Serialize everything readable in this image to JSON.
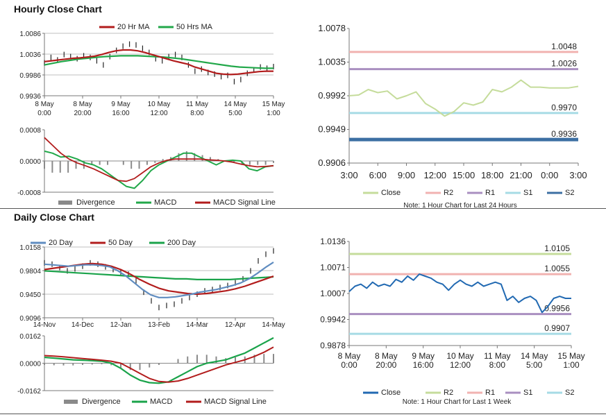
{
  "hourly_title": "Hourly Close Chart",
  "daily_title": "Daily Close Chart",
  "colors": {
    "ma20_red": "#b21c1c",
    "ma50_green": "#22a84a",
    "close_green": "#c5dc9b",
    "r2_pink": "#f1b2b0",
    "r1_purple": "#a98fc0",
    "s1_cyan": "#a6dbe5",
    "s2_blue": "#3c6fa3",
    "close_blue": "#2169b2",
    "ma20_blue": "#5f8cc0",
    "ma200_green": "#1aa34a",
    "divergence_gray": "#8a8a8a"
  },
  "chart_data": [
    {
      "id": "hourly_price",
      "type": "line",
      "legend": [
        "20 Hr MA",
        "50 Hrs MA"
      ],
      "x_ticks": [
        [
          "8 May",
          "0:00"
        ],
        [
          "8 May",
          "20:00"
        ],
        [
          "9 May",
          "16:00"
        ],
        [
          "10 May",
          "12:00"
        ],
        [
          "11 May",
          "8:00"
        ],
        [
          "14 May",
          "5:00"
        ],
        [
          "15 May",
          "1:00"
        ]
      ],
      "y_ticks": [
        "1.0086",
        "1.0036",
        "0.9986",
        "0.9936"
      ],
      "ylim": [
        0.9936,
        1.0086
      ],
      "series": [
        {
          "name": "Close",
          "values": [
            1.0015,
            1.0028,
            1.0022,
            1.0035,
            1.003,
            1.0025,
            1.0032,
            1.0028,
            1.002,
            1.001,
            1.003,
            1.0045,
            1.0055,
            1.006,
            1.0058,
            1.005,
            1.004,
            1.0025,
            1.002,
            1.003,
            1.0035,
            1.0028,
            1.001,
            0.9995,
            1.0,
            0.9992,
            0.9988,
            0.9982,
            0.9985,
            0.997,
            0.9975,
            0.999,
            0.9998,
            1.0005,
            1.0002,
            1.0006
          ]
        },
        {
          "name": "20 Hr MA",
          "values": [
            1.0018,
            1.002,
            1.0022,
            1.0024,
            1.0026,
            1.0027,
            1.0029,
            1.0031,
            1.0035,
            1.004,
            1.0044,
            1.0046,
            1.0046,
            1.0044,
            1.004,
            1.0035,
            1.003,
            1.0025,
            1.002,
            1.0016,
            1.0012,
            1.0005,
            1.0,
            0.9995,
            0.999,
            0.9988,
            0.9987,
            0.9988,
            0.999,
            0.9992,
            0.9994,
            0.9995,
            0.9995
          ]
        },
        {
          "name": "50 Hrs MA",
          "values": [
            1.001,
            1.0014,
            1.0018,
            1.0021,
            1.0024,
            1.0026,
            1.0028,
            1.003,
            1.0031,
            1.0032,
            1.0032,
            1.0032,
            1.0031,
            1.003,
            1.0029,
            1.0027,
            1.0025,
            1.0022,
            1.0019,
            1.0016,
            1.0013,
            1.001,
            1.0007,
            1.0005,
            1.0004,
            1.0003,
            1.0002,
            1.0002
          ]
        }
      ]
    },
    {
      "id": "hourly_macd",
      "type": "line",
      "legend": [
        "Divergence",
        "MACD",
        "MACD Signal Line"
      ],
      "y_ticks": [
        "0.0008",
        "0.0000",
        "-0.0008"
      ],
      "ylim": [
        -0.0008,
        0.0008
      ],
      "series": [
        {
          "name": "MACD",
          "values": [
            0.00025,
            0.0002,
            0.0001,
            0.00012,
            5e-05,
            -5e-05,
            -0.0001,
            -0.0002,
            -0.00035,
            -0.0005,
            -0.00065,
            -0.0007,
            -0.0005,
            -0.00025,
            -0.0001,
            0.0,
            0.0001,
            0.0002,
            0.0002,
            0.0001,
            0.0,
            -0.0001,
            0.0,
            2e-05,
            0.0,
            -0.0002,
            -0.00025,
            -0.00015,
            -0.00012
          ]
        },
        {
          "name": "MACD Signal Line",
          "values": [
            0.0006,
            0.0004,
            0.0002,
            5e-05,
            -5e-05,
            -0.00012,
            -0.0002,
            -0.0003,
            -0.0004,
            -0.0005,
            -0.00052,
            -0.00045,
            -0.0003,
            -0.00015,
            -5e-05,
            2e-05,
            5e-05,
            5e-05,
            5e-05,
            5e-05,
            3e-05,
            2e-05,
            0.0,
            -3e-05,
            -8e-05,
            -0.00012,
            -0.00015,
            -0.00014,
            -0.00012
          ]
        },
        {
          "name": "Divergence",
          "values": [
            -0.0002,
            -0.0003,
            -0.0003,
            -0.0003,
            -0.0002,
            -0.0002,
            -0.0001,
            -0.0001,
            -0.0001,
            0.0,
            -0.0001,
            -0.0002,
            -0.0002,
            -0.0001,
            -5e-05,
            5e-05,
            0.0001,
            0.0002,
            0.00025,
            0.0002,
            0.00015,
            0.0001,
            5e-05,
            0.0,
            -5e-05,
            -0.0001,
            -0.0001,
            -0.0001,
            -0.0001,
            -5e-05
          ]
        }
      ]
    },
    {
      "id": "hourly_levels",
      "type": "line",
      "title_note": "Note: 1 Hour Chart for Last 24 Hours",
      "legend": [
        "Close",
        "R2",
        "R1",
        "S1",
        "S2"
      ],
      "x_ticks": [
        "3:00",
        "6:00",
        "9:00",
        "12:00",
        "15:00",
        "18:00",
        "21:00",
        "0:00",
        "3:00"
      ],
      "y_ticks": [
        "1.0078",
        "1.0035",
        "0.9992",
        "0.9949",
        "0.9906"
      ],
      "ylim": [
        0.9906,
        1.0078
      ],
      "levels": [
        {
          "name": "R2",
          "value": 1.0048,
          "label": "1.0048"
        },
        {
          "name": "R1",
          "value": 1.0026,
          "label": "1.0026"
        },
        {
          "name": "S1",
          "value": 0.997,
          "label": "0.9970"
        },
        {
          "name": "S2",
          "value": 0.9936,
          "label": "0.9936"
        }
      ],
      "series": [
        {
          "name": "Close",
          "values": [
            0.9992,
            0.9993,
            1.0,
            0.9996,
            0.9998,
            0.9988,
            0.9992,
            0.9997,
            0.9982,
            0.9975,
            0.9966,
            0.9972,
            0.9983,
            0.998,
            0.9984,
            1.0,
            0.9997,
            1.0003,
            1.0012,
            1.0003,
            1.0003,
            1.0002,
            1.0002,
            1.0002,
            1.0004
          ]
        }
      ]
    },
    {
      "id": "daily_price",
      "type": "line",
      "legend": [
        "20 Day",
        "50 Day",
        "200 Day"
      ],
      "x_ticks": [
        "14-Nov",
        "14-Dec",
        "12-Jan",
        "13-Feb",
        "14-Mar",
        "12-Apr",
        "14-May"
      ],
      "y_ticks": [
        "1.0158",
        "0.9804",
        "0.9450",
        "0.9096"
      ],
      "ylim": [
        0.9096,
        1.0158
      ],
      "series": [
        {
          "name": "Close",
          "values": [
            0.992,
            0.99,
            0.985,
            0.98,
            0.983,
            0.987,
            0.992,
            0.99,
            0.986,
            0.982,
            0.978,
            0.975,
            0.965,
            0.948,
            0.935,
            0.925,
            0.928,
            0.93,
            0.935,
            0.94,
            0.945,
            0.95,
            0.952,
            0.955,
            0.958,
            0.962,
            0.968,
            0.98,
            0.995,
            1.005,
            1.01
          ]
        },
        {
          "name": "20 Day",
          "values": [
            0.99,
            0.989,
            0.988,
            0.987,
            0.988,
            0.989,
            0.989,
            0.988,
            0.986,
            0.98,
            0.972,
            0.962,
            0.952,
            0.944,
            0.94,
            0.94,
            0.941,
            0.943,
            0.945,
            0.948,
            0.95,
            0.952,
            0.955,
            0.958,
            0.962,
            0.968,
            0.976,
            0.985,
            0.993
          ]
        },
        {
          "name": "50 Day",
          "values": [
            0.982,
            0.984,
            0.986,
            0.988,
            0.99,
            0.991,
            0.99,
            0.987,
            0.982,
            0.975,
            0.967,
            0.96,
            0.954,
            0.95,
            0.948,
            0.946,
            0.945,
            0.946,
            0.948,
            0.95,
            0.953,
            0.957,
            0.962,
            0.967,
            0.972
          ]
        },
        {
          "name": "200 Day",
          "values": [
            0.98,
            0.979,
            0.978,
            0.977,
            0.976,
            0.975,
            0.974,
            0.973,
            0.972,
            0.971,
            0.97,
            0.969,
            0.968,
            0.968,
            0.967,
            0.967,
            0.967,
            0.967,
            0.968,
            0.969,
            0.97,
            0.971
          ]
        }
      ]
    },
    {
      "id": "daily_macd",
      "type": "line",
      "legend": [
        "Divergence",
        "MACD",
        "MACD Signal Line"
      ],
      "y_ticks": [
        "0.0162",
        "0.0000",
        "-0.0162"
      ],
      "ylim": [
        -0.0162,
        0.0162
      ],
      "series": [
        {
          "name": "MACD",
          "values": [
            0.0035,
            0.003,
            0.0025,
            0.002,
            0.0018,
            0.0015,
            0.0012,
            0.0,
            -0.003,
            -0.007,
            -0.01,
            -0.0115,
            -0.0118,
            -0.011,
            -0.008,
            -0.005,
            -0.002,
            0.0,
            0.001,
            0.002,
            0.004,
            0.006,
            0.009,
            0.012,
            0.015
          ]
        },
        {
          "name": "MACD Signal Line",
          "values": [
            0.0045,
            0.0042,
            0.0038,
            0.0033,
            0.0028,
            0.0023,
            0.0018,
            0.0012,
            0.0,
            -0.003,
            -0.006,
            -0.009,
            -0.0108,
            -0.0112,
            -0.0105,
            -0.009,
            -0.007,
            -0.005,
            -0.003,
            -0.001,
            0.0005,
            0.002,
            0.004,
            0.0065,
            0.0095
          ]
        },
        {
          "name": "Divergence",
          "values": [
            -0.001,
            -0.0012,
            -0.0013,
            -0.0013,
            -0.001,
            -0.0008,
            -0.0006,
            -0.0012,
            -0.003,
            -0.004,
            -0.004,
            -0.0025,
            -0.001,
            0.0002,
            0.0025,
            0.004,
            0.005,
            0.005,
            0.004,
            0.003,
            0.0035,
            0.004,
            0.005,
            0.0055,
            0.0055
          ]
        }
      ]
    },
    {
      "id": "daily_levels",
      "type": "line",
      "title_note": "Note: 1 Hour Chart for Last 1 Week",
      "legend": [
        "Close",
        "R2",
        "R1",
        "S1",
        "S2"
      ],
      "x_ticks": [
        [
          "8 May",
          "0:00"
        ],
        [
          "8 May",
          "20:00"
        ],
        [
          "9 May",
          "16:00"
        ],
        [
          "10 May",
          "12:00"
        ],
        [
          "11 May",
          "8:00"
        ],
        [
          "14 May",
          "5:00"
        ],
        [
          "15 May",
          "1:00"
        ]
      ],
      "y_ticks": [
        "1.0136",
        "1.0071",
        "1.0007",
        "0.9942",
        "0.9878"
      ],
      "ylim": [
        0.9878,
        1.0136
      ],
      "levels": [
        {
          "name": "R2",
          "value": 1.0105,
          "label": "1.0105"
        },
        {
          "name": "R1",
          "value": 1.0055,
          "label": "1.0055"
        },
        {
          "name": "S1",
          "value": 0.9956,
          "label": "0.9956"
        },
        {
          "name": "S2",
          "value": 0.9907,
          "label": "0.9907"
        }
      ],
      "series": [
        {
          "name": "Close",
          "values": [
            1.0012,
            1.0025,
            1.003,
            1.002,
            1.0035,
            1.0025,
            1.003,
            1.0025,
            1.0042,
            1.0035,
            1.005,
            1.004,
            1.0055,
            1.005,
            1.0045,
            1.0035,
            1.003,
            1.0015,
            1.003,
            1.004,
            1.003,
            1.0025,
            1.0035,
            1.0025,
            1.003,
            1.0035,
            1.003,
            0.999,
            1.0,
            0.9985,
            0.9995,
            1.0,
            0.999,
            0.996,
            0.9975,
            0.9995,
            1.0,
            0.9995,
            0.9995
          ]
        }
      ]
    }
  ]
}
